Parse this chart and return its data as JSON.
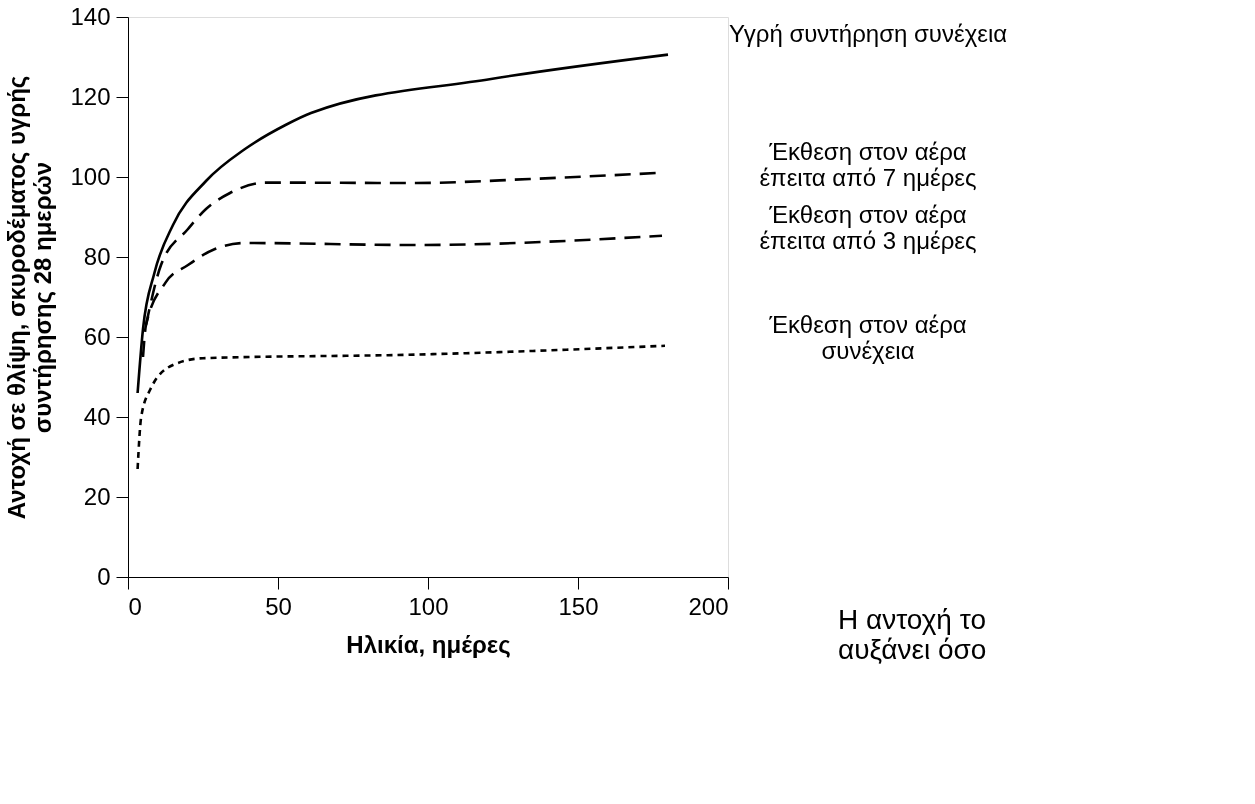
{
  "chart_data": {
    "type": "line",
    "xlabel": "Ηλικία, ημέρες",
    "ylabel": "Αντοχή σε θλίψη, σκυροδέματος υγρής\nσυντήρησης 28 ημερών",
    "xlim": [
      0,
      200
    ],
    "ylim": [
      0,
      140
    ],
    "xticks": [
      0,
      50,
      100,
      150,
      200
    ],
    "yticks": [
      0,
      20,
      40,
      60,
      80,
      100,
      120,
      140
    ],
    "grid": false,
    "series": [
      {
        "name": "Υγρή συντήρηση συνέχεια",
        "color": "#000000",
        "line_style": "solid",
        "x": [
          3.2,
          5,
          8.8,
          15,
          26,
          39,
          52.5,
          61,
          121,
          180
        ],
        "values": [
          46,
          62,
          76,
          88,
          99,
          107,
          113,
          116,
          124.5,
          130.6
        ]
      },
      {
        "name": "Έκθεση στον αέρα\nέπειτα από 7 ημέρες",
        "color": "#000000",
        "line_style": "dashed",
        "x": [
          6,
          11,
          20,
          26,
          34,
          46,
          96,
          134,
          176
        ],
        "values": [
          63,
          78,
          87,
          92,
          96,
          98.6,
          98.5,
          99.5,
          101
        ]
      },
      {
        "name": "Έκθεση στον αέρα\nέπειτα από 3 ημέρες",
        "color": "#000000",
        "line_style": "dashed",
        "x": [
          5,
          6,
          12.5,
          20,
          29,
          39,
          96,
          178
        ],
        "values": [
          55,
          63,
          73.6,
          78,
          82,
          83.5,
          83,
          85.3
        ]
      },
      {
        "name": "Έκθεση στον αέρα\nσυνέχεια",
        "color": "#000000",
        "line_style": "dotted",
        "x": [
          3.2,
          4.4,
          7.5,
          15,
          25,
          96,
          179
        ],
        "values": [
          27,
          40,
          47,
          53,
          54.7,
          55.6,
          57.8
        ]
      }
    ],
    "annotations": [
      "Η αντοχή το\nαυξάνει όσο"
    ]
  }
}
